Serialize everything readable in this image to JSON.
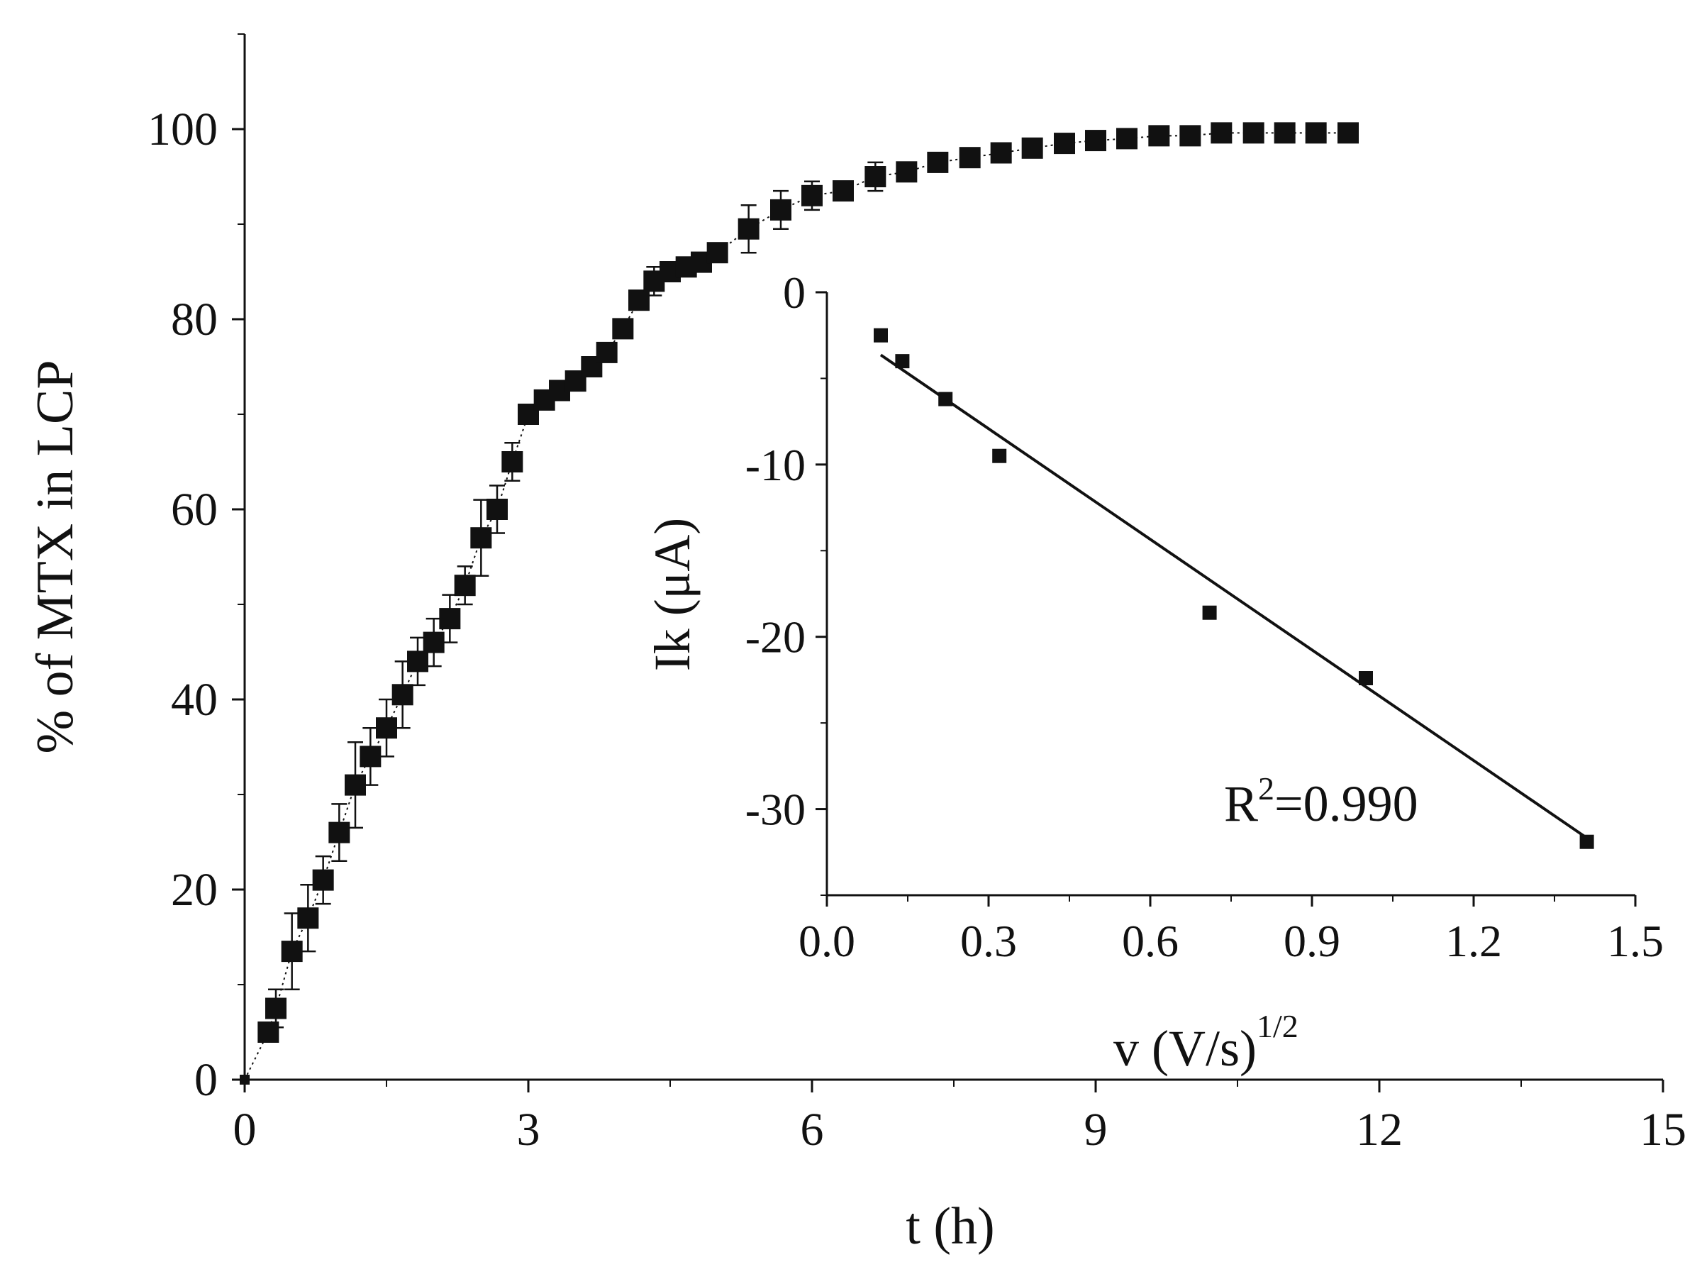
{
  "chart_data": [
    {
      "type": "scatter",
      "title": "",
      "xlabel": "t (h)",
      "ylabel": "% of MTX in LCP",
      "xlim": [
        0,
        15
      ],
      "ylim": [
        0,
        110
      ],
      "xticks": [
        "0",
        "3",
        "6",
        "9",
        "12",
        "15"
      ],
      "yticks": [
        "0",
        "20",
        "40",
        "60",
        "80",
        "100"
      ],
      "marker": "square",
      "color": "#111111",
      "legend": "none",
      "grid": false,
      "series": [
        {
          "x": [
            0.0,
            0.25,
            0.33,
            0.5,
            0.67,
            0.83,
            1.0,
            1.17,
            1.33,
            1.5,
            1.67,
            1.83,
            2.0,
            2.17,
            2.33,
            2.5,
            2.67,
            2.83,
            3.0,
            3.17,
            3.33,
            3.5,
            3.67,
            3.83,
            4.0,
            4.17,
            4.33,
            4.5,
            4.67,
            4.83,
            5.0,
            5.33,
            5.67,
            6.0,
            6.33,
            6.67,
            7.0,
            7.33,
            7.67,
            8.0,
            8.33,
            8.67,
            9.0,
            9.33,
            9.67,
            10.0,
            10.33,
            10.67,
            11.0,
            11.33,
            11.67
          ],
          "y": [
            0.0,
            5.0,
            7.5,
            13.5,
            17.0,
            21.0,
            26.0,
            31.0,
            34.0,
            37.0,
            40.5,
            44.0,
            46.0,
            48.5,
            52.0,
            57.0,
            60.0,
            65.0,
            70.0,
            71.5,
            72.5,
            73.5,
            75.0,
            76.5,
            79.0,
            82.0,
            84.0,
            85.0,
            85.5,
            86.0,
            87.0,
            89.5,
            91.5,
            93.0,
            93.5,
            95.0,
            95.5,
            96.5,
            97.0,
            97.5,
            98.0,
            98.5,
            98.8,
            99.0,
            99.3,
            99.3,
            99.6,
            99.6,
            99.6,
            99.6,
            99.6
          ],
          "err": [
            0.0,
            1.0,
            2.0,
            4.0,
            3.5,
            2.5,
            3.0,
            4.5,
            3.0,
            3.0,
            3.5,
            2.5,
            2.5,
            2.5,
            2.0,
            4.0,
            2.5,
            2.0,
            1.0,
            1.0,
            1.0,
            1.0,
            1.0,
            1.0,
            1.0,
            1.0,
            1.5,
            1.0,
            1.0,
            1.0,
            1.0,
            2.5,
            2.0,
            1.5,
            1.0,
            1.5,
            1.0,
            0.8,
            0.8,
            0.8,
            0.5,
            0.5,
            0.5,
            0.5,
            0.5,
            0.5,
            0.5,
            0.5,
            0.5,
            0.5,
            0.5
          ]
        }
      ]
    },
    {
      "type": "scatter",
      "title": "",
      "xlabel": "v (V/s)",
      "xlabel_sup": "1/2",
      "ylabel": "Ik (μA)",
      "xlim": [
        0.0,
        1.5
      ],
      "ylim": [
        -35,
        0
      ],
      "xticks": [
        "0.0",
        "0.3",
        "0.6",
        "0.9",
        "1.2",
        "1.5"
      ],
      "yticks": [
        "0",
        "-10",
        "-20",
        "-30"
      ],
      "marker": "square",
      "color": "#111111",
      "legend": "none",
      "grid": false,
      "series": [
        {
          "x": [
            0.1,
            0.14,
            0.22,
            0.32,
            0.71,
            1.0,
            1.41
          ],
          "y": [
            -2.5,
            -4.0,
            -6.2,
            -9.5,
            -18.6,
            -22.4,
            -31.9
          ]
        }
      ],
      "fit": {
        "slope": -21.4,
        "intercept": -1.5,
        "x_range": [
          0.1,
          1.41
        ]
      },
      "annotation": {
        "text": "R",
        "sup": "2",
        "rest": "=0.990"
      }
    }
  ]
}
